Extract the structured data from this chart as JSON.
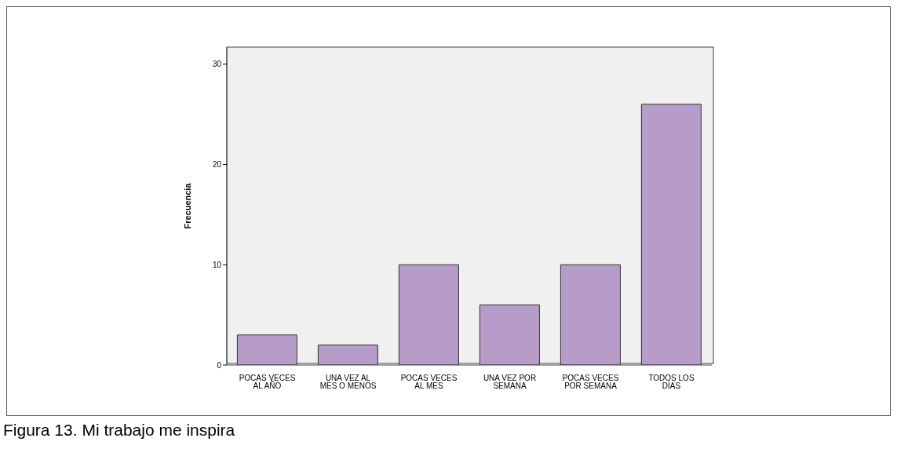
{
  "chart_data": {
    "type": "bar",
    "ylabel": "Frecuencia",
    "categories": [
      "POCAS VECES AL AÑO",
      "UNA VEZ AL MES O MENOS",
      "POCAS VECES AL MES",
      "UNA VEZ POR SEMANA",
      "POCAS VECES POR SEMANA",
      "TODOS LOS DÍAS"
    ],
    "values": [
      3,
      2,
      10,
      6,
      10,
      26
    ],
    "color": "#b79bc9",
    "ylim": [
      0,
      31.7
    ],
    "yticks": [
      0,
      10,
      20,
      30
    ],
    "grid": false,
    "annotations": [
      "Figura 13. Mi trabajo me inspira"
    ]
  }
}
